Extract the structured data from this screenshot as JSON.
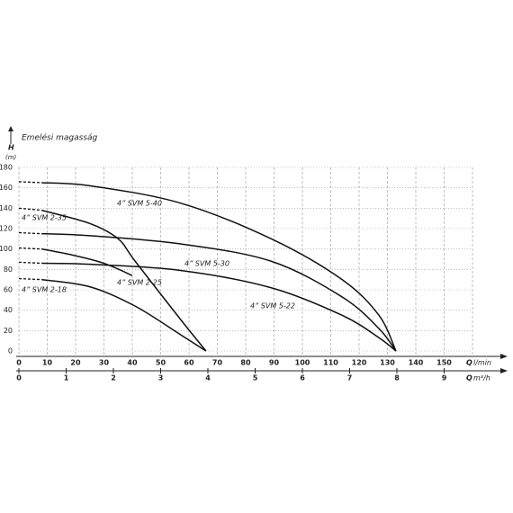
{
  "chart_data": {
    "type": "line",
    "title": "Emelési magasság",
    "y_label": "H",
    "y_unit": "(m)",
    "x_label": "Q",
    "x_unit": "l/min",
    "x2_label": "Q",
    "x2_unit": "m³/h",
    "xlim": [
      0,
      160
    ],
    "xticks": [
      0,
      10,
      20,
      30,
      40,
      50,
      60,
      70,
      80,
      90,
      100,
      110,
      120,
      130,
      140,
      150
    ],
    "x2lim": [
      0,
      9.6
    ],
    "x2ticks": [
      0,
      1,
      2,
      3,
      4,
      5,
      6,
      7,
      8,
      9
    ],
    "ylim": [
      0,
      180
    ],
    "yticks": [
      0,
      20,
      40,
      60,
      80,
      100,
      120,
      140,
      160,
      180
    ],
    "grid": true,
    "series": [
      {
        "name": "4” SVM 5-40",
        "color": "#111111",
        "x": [
          0,
          8,
          25,
          57,
          89,
          114,
          127,
          133
        ],
        "values": [
          166,
          165,
          162,
          145,
          110,
          70,
          35,
          0
        ]
      },
      {
        "name": "4” SVM 5-30",
        "color": "#111111",
        "x": [
          0,
          8,
          25,
          57,
          89,
          114,
          127,
          133
        ],
        "values": [
          116,
          115,
          113,
          105,
          88,
          53,
          22,
          0
        ]
      },
      {
        "name": "4” SVM 5-22",
        "color": "#111111",
        "x": [
          0,
          8,
          25,
          57,
          89,
          114,
          127,
          133
        ],
        "values": [
          87,
          86,
          85,
          79,
          62,
          35,
          13,
          0
        ]
      },
      {
        "name": "4” SVM 2-35",
        "color": "#111111",
        "x": [
          0,
          8,
          25,
          35,
          41,
          57,
          66
        ],
        "values": [
          140,
          138,
          125,
          110,
          88,
          31,
          0
        ]
      },
      {
        "name": "4” SVM 2-25",
        "color": "#111111",
        "x": [
          0,
          8,
          19,
          30,
          40
        ],
        "values": [
          101,
          100,
          94,
          86,
          74
        ]
      },
      {
        "name": "4” SVM 2-18",
        "color": "#111111",
        "x": [
          0,
          8,
          25,
          41,
          57,
          66
        ],
        "values": [
          71,
          70,
          63,
          44,
          16,
          0
        ]
      }
    ]
  }
}
